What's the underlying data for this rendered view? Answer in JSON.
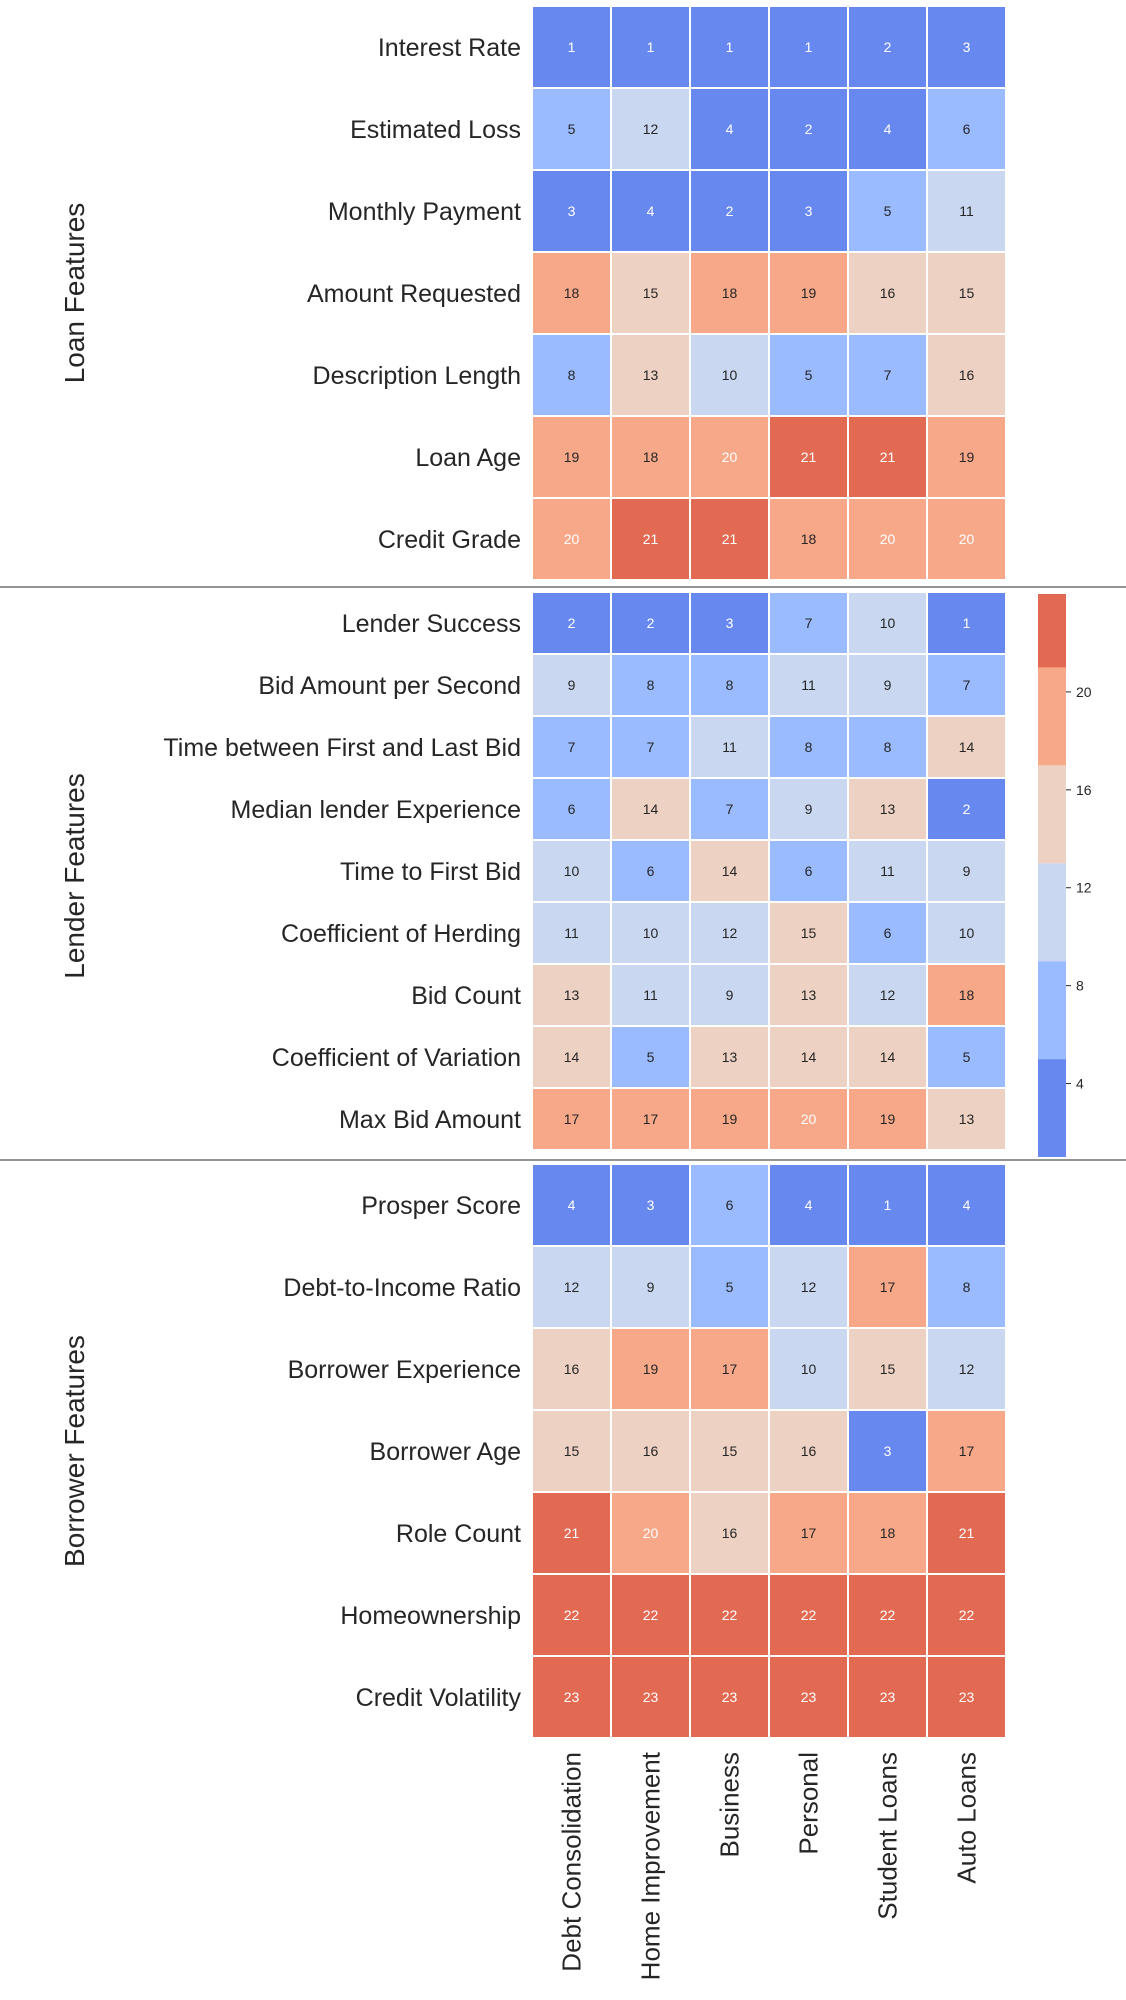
{
  "chart_data": {
    "type": "heatmap",
    "columns": [
      "Debt Consolidation",
      "Home Improvement",
      "Business",
      "Personal",
      "Student Loans",
      "Auto Loans"
    ],
    "groups": [
      {
        "name": "Loan Features",
        "rows": [
          {
            "label": "Interest Rate",
            "values": [
              1,
              1,
              1,
              1,
              2,
              3
            ]
          },
          {
            "label": "Estimated Loss",
            "values": [
              5,
              12,
              4,
              2,
              4,
              6
            ]
          },
          {
            "label": "Monthly Payment",
            "values": [
              3,
              4,
              2,
              3,
              5,
              11
            ]
          },
          {
            "label": "Amount Requested",
            "values": [
              18,
              15,
              18,
              19,
              16,
              15
            ]
          },
          {
            "label": "Description Length",
            "values": [
              8,
              13,
              10,
              5,
              7,
              16
            ]
          },
          {
            "label": "Loan Age",
            "values": [
              19,
              18,
              20,
              21,
              21,
              19
            ]
          },
          {
            "label": "Credit Grade",
            "values": [
              20,
              21,
              21,
              18,
              20,
              20
            ]
          }
        ]
      },
      {
        "name": "Lender Features",
        "rows": [
          {
            "label": "Lender Success",
            "values": [
              2,
              2,
              3,
              7,
              10,
              1
            ]
          },
          {
            "label": "Bid Amount per Second",
            "values": [
              9,
              8,
              8,
              11,
              9,
              7
            ]
          },
          {
            "label": "Time between First and Last Bid",
            "values": [
              7,
              7,
              11,
              8,
              8,
              14
            ]
          },
          {
            "label": "Median lender Experience",
            "values": [
              6,
              14,
              7,
              9,
              13,
              2
            ]
          },
          {
            "label": "Time to First Bid",
            "values": [
              10,
              6,
              14,
              6,
              11,
              9
            ]
          },
          {
            "label": "Coefficient of Herding",
            "values": [
              11,
              10,
              12,
              15,
              6,
              10
            ]
          },
          {
            "label": "Bid Count",
            "values": [
              13,
              11,
              9,
              13,
              12,
              18
            ]
          },
          {
            "label": "Coefficient of Variation",
            "values": [
              14,
              5,
              13,
              14,
              14,
              5
            ]
          },
          {
            "label": "Max Bid Amount",
            "values": [
              17,
              17,
              19,
              20,
              19,
              13
            ]
          }
        ]
      },
      {
        "name": "Borrower Features",
        "rows": [
          {
            "label": "Prosper Score",
            "values": [
              4,
              3,
              6,
              4,
              1,
              4
            ]
          },
          {
            "label": "Debt-to-Income Ratio",
            "values": [
              12,
              9,
              5,
              12,
              17,
              8
            ]
          },
          {
            "label": "Borrower Experience",
            "values": [
              16,
              19,
              17,
              10,
              15,
              12
            ]
          },
          {
            "label": "Borrower Age",
            "values": [
              15,
              16,
              15,
              16,
              3,
              17
            ]
          },
          {
            "label": "Role Count",
            "values": [
              21,
              20,
              16,
              17,
              18,
              21
            ]
          },
          {
            "label": "Homeownership",
            "values": [
              22,
              22,
              22,
              22,
              22,
              22
            ]
          },
          {
            "label": "Credit Volatility",
            "values": [
              23,
              23,
              23,
              23,
              23,
              23
            ]
          }
        ]
      }
    ],
    "colorbar": {
      "range": [
        1,
        23
      ],
      "ticks": [
        4,
        8,
        12,
        16,
        20
      ],
      "bins": [
        {
          "from": 1,
          "to": 5,
          "color": "#6788ee"
        },
        {
          "from": 5,
          "to": 9,
          "color": "#9abbff"
        },
        {
          "from": 9,
          "to": 13,
          "color": "#c9d7f0"
        },
        {
          "from": 13,
          "to": 17,
          "color": "#edd1c2"
        },
        {
          "from": 17,
          "to": 21,
          "color": "#f7a889"
        },
        {
          "from": 21,
          "to": 24,
          "color": "#e26952"
        }
      ]
    }
  }
}
